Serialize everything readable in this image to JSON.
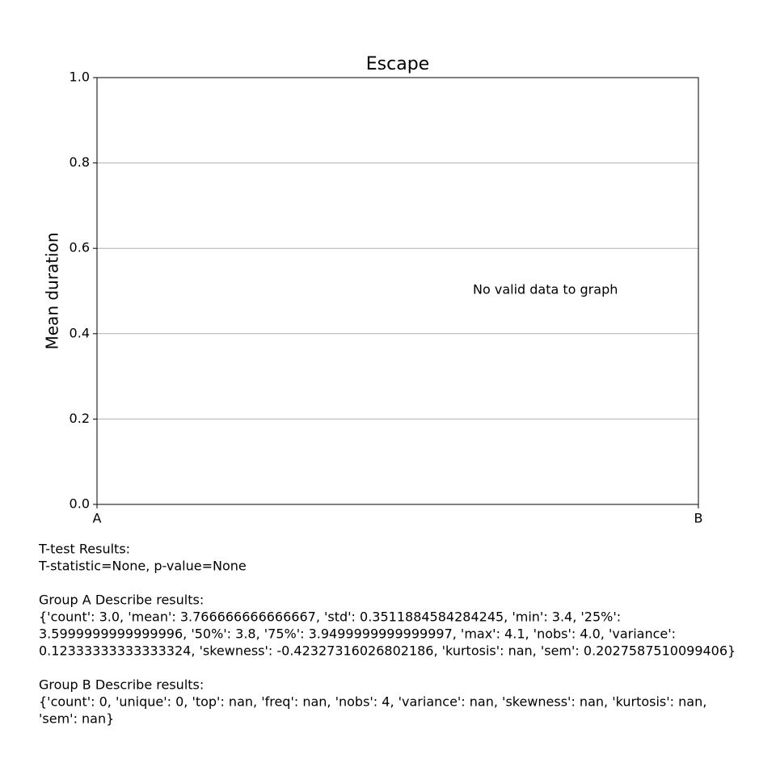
{
  "chart_data": {
    "type": "bar",
    "title": "Escape",
    "y_label": "Mean duration",
    "categories": [
      "A",
      "B"
    ],
    "ylim": [
      0,
      1
    ],
    "yticks": [
      {
        "value": 0,
        "label": "0.0"
      },
      {
        "value": 0.2,
        "label": "0.2"
      },
      {
        "value": 0.4,
        "label": "0.4"
      },
      {
        "value": 0.6,
        "label": "0.6"
      },
      {
        "value": 0.8,
        "label": "0.8"
      },
      {
        "value": 1,
        "label": "1.0"
      }
    ],
    "grid": true,
    "annotation": "No valid data to graph"
  },
  "notes": [
    [
      "T-test Results:",
      "T-statistic=None, p-value=None"
    ],
    [
      "Group A Describe results:",
      "{'count': 3.0, 'mean': 3.766666666666667, 'std': 0.3511884584284245, 'min': 3.4, '25%':",
      "3.5999999999999996, '50%': 3.8, '75%': 3.9499999999999997, 'max': 4.1, 'nobs': 4.0, 'variance':",
      "0.12333333333333324, 'skewness': -0.42327316026802186, 'kurtosis': nan, 'sem': 0.2027587510099406}"
    ],
    [
      "Group B Describe results:",
      "{'count': 0, 'unique': 0, 'top': nan, 'freq': nan, 'nobs': 4, 'variance': nan, 'skewness': nan, 'kurtosis': nan,",
      "'sem': nan}"
    ]
  ]
}
